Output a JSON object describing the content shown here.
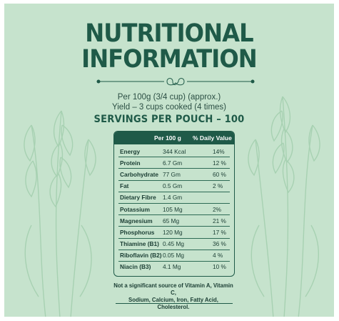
{
  "title": {
    "line1": "NUTRITIONAL",
    "line2": "INFORMATION"
  },
  "subtitle": {
    "line1": "Per 100g (3/4 cup) (approx.)",
    "line2": "Yield – 3 cups cooked (4 times)"
  },
  "servings": "SERVINGS PER POUCH – 100",
  "table": {
    "headers": [
      "",
      "Per 100 g",
      "% Daily Value"
    ],
    "rows": [
      {
        "nutrient": "Energy",
        "amount": "344 Kcal",
        "dv": "14%"
      },
      {
        "nutrient": "Protein",
        "amount": "6.7 Gm",
        "dv": "12 %"
      },
      {
        "nutrient": "Carbohydrate",
        "amount": "77 Gm",
        "dv": "60 %"
      },
      {
        "nutrient": "Fat",
        "amount": "0.5 Gm",
        "dv": "2 %"
      },
      {
        "nutrient": "Dietary Fibre",
        "amount": "1.4 Gm",
        "dv": ""
      },
      {
        "nutrient": "Potassium",
        "amount": "105 Mg",
        "dv": "2%"
      },
      {
        "nutrient": "Magnesium",
        "amount": "65 Mg",
        "dv": "21 %"
      },
      {
        "nutrient": "Phosphorus",
        "amount": "120 Mg",
        "dv": "17 %"
      },
      {
        "nutrient": "Thiamine (B1)",
        "amount": "0.45 Mg",
        "dv": "36 %"
      },
      {
        "nutrient": "Riboflavin (B2)",
        "amount": "0.05 Mg",
        "dv": "4 %"
      },
      {
        "nutrient": "Niacin (B3)",
        "amount": "4.1 Mg",
        "dv": "10 %"
      }
    ]
  },
  "note": {
    "line1": "Not a significant source of Vitamin A, Vitamin C,",
    "line2": "Sodium, Calcium, Iron, Fatty Acid, Cholesterol."
  },
  "colors": {
    "background": "#c6e3cd",
    "accent": "#1f5a48",
    "text": "#1a3d33"
  },
  "icons": [
    "wheat-illustration-icon",
    "ornamental-divider-icon"
  ]
}
